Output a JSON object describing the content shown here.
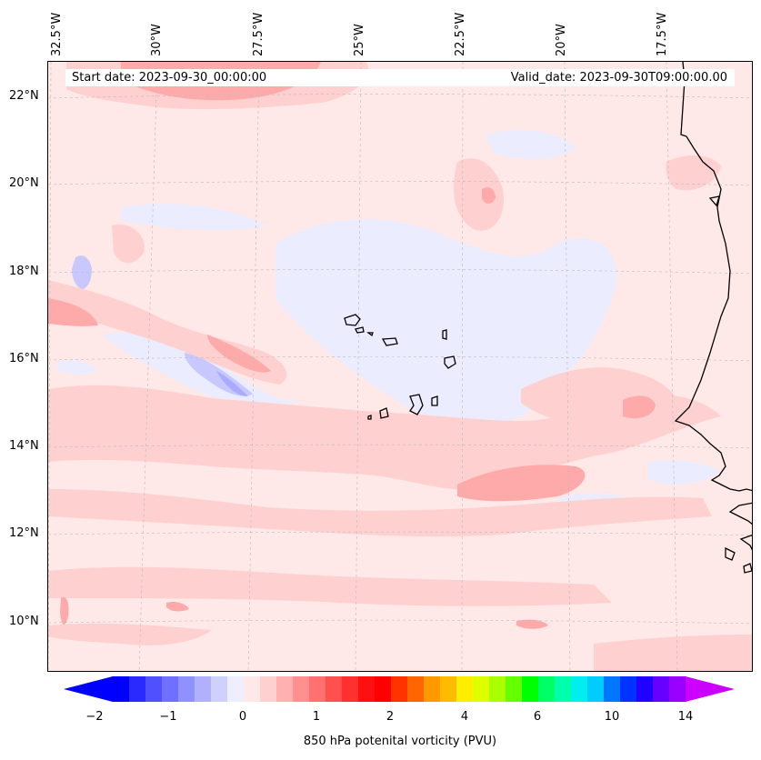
{
  "map": {
    "variable": "850 hPa potential vorticity",
    "start_date": "Start date: 2023-09-30_00:00:00",
    "valid_date": "Valid_date: 2023-09-30T09:00:00.00",
    "lon_labels": [
      "32.5°W",
      "30°W",
      "27.5°W",
      "25°W",
      "22.5°W",
      "20°W",
      "17.5°W"
    ],
    "lat_labels": [
      "22°N",
      "20°N",
      "18°N",
      "16°N",
      "14°N",
      "12°N",
      "10°N"
    ],
    "colors": {
      "background": "#ffe8e8",
      "light_pink": "#ffd0d0",
      "pink": "#ffaaaa",
      "light_blue": "#ececff",
      "blue": "#c8c8ff",
      "blue2": "#aaaaff",
      "coast": "#000000",
      "grid": "#bbbbbb"
    }
  },
  "colorbar": {
    "label": "850 hPa potenital vorticity (PVU)",
    "tick_labels": [
      "−2",
      "−1",
      "0",
      "1",
      "2",
      "4",
      "6",
      "10",
      "14"
    ],
    "colors": [
      "#0000ff",
      "#2a2aff",
      "#5050ff",
      "#7070ff",
      "#9090ff",
      "#b0b0ff",
      "#d0d0ff",
      "#eeeeff",
      "#ffe8e8",
      "#ffd0d0",
      "#ffb0b0",
      "#ff9090",
      "#ff7070",
      "#ff5050",
      "#ff3030",
      "#ff1010",
      "#ff0000",
      "#ff3300",
      "#ff6600",
      "#ff9900",
      "#ffbb00",
      "#ffee00",
      "#ddff00",
      "#aaff00",
      "#66ff00",
      "#00ff00",
      "#00ff66",
      "#00ffaa",
      "#00eeee",
      "#00ccff",
      "#0077ff",
      "#0033ff",
      "#2200ff",
      "#6600ff",
      "#9900ff"
    ],
    "extend_low": "#0000ff",
    "extend_high": "#cc00ff"
  }
}
